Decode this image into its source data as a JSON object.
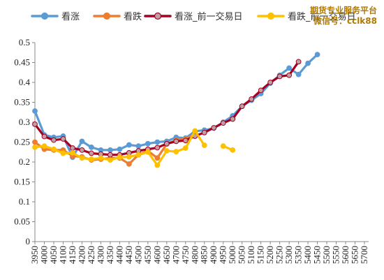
{
  "watermark": {
    "line1": "期货专业服务平台",
    "line2": "微信号：cclk88"
  },
  "chart_data": {
    "type": "line",
    "title": "",
    "xlabel": "",
    "ylabel": "",
    "ylim": [
      0,
      0.5
    ],
    "yticks": [
      "0",
      "0.05",
      "0.1",
      "0.15",
      "0.2",
      "0.25",
      "0.3",
      "0.35",
      "0.4",
      "0.45",
      "0.5"
    ],
    "grid": false,
    "legend_position": "top",
    "x": [
      3950,
      4000,
      4050,
      4100,
      4150,
      4200,
      4250,
      4300,
      4350,
      4400,
      4450,
      4500,
      4550,
      4600,
      4650,
      4700,
      4750,
      4800,
      4850,
      4900,
      4950,
      5000,
      5050,
      5100,
      5150,
      5200,
      5250,
      5300,
      5350,
      5400,
      5450,
      5500,
      5550,
      5600,
      5650,
      5700
    ],
    "series": [
      {
        "name": "看涨",
        "color": "#5b9bd5",
        "marker": "circle",
        "values": [
          0.328,
          0.268,
          0.262,
          0.265,
          0.212,
          0.252,
          0.237,
          0.23,
          0.23,
          0.232,
          0.243,
          0.24,
          0.246,
          0.25,
          0.252,
          0.262,
          0.26,
          0.277,
          0.28,
          0.285,
          0.3,
          0.316,
          0.34,
          0.355,
          0.372,
          0.398,
          0.418,
          0.436,
          0.42,
          0.448,
          0.47,
          null,
          null,
          null,
          null,
          null
        ]
      },
      {
        "name": "看跌",
        "color": "#ed7d31",
        "marker": "circle",
        "values": [
          0.25,
          0.232,
          0.23,
          0.23,
          0.215,
          0.213,
          0.205,
          0.207,
          0.21,
          0.21,
          0.195,
          0.218,
          0.228,
          0.21,
          0.245,
          0.255,
          0.258,
          0.27,
          null,
          null,
          null,
          null,
          null,
          null,
          null,
          null,
          null,
          null,
          null,
          null,
          null,
          null,
          null,
          null,
          null,
          null
        ]
      },
      {
        "name": "看涨_前一交易日",
        "color": "#a50021",
        "marker": "circle-gray",
        "values": [
          0.295,
          0.264,
          0.255,
          0.258,
          0.235,
          0.23,
          0.222,
          0.22,
          0.218,
          0.218,
          0.223,
          0.228,
          0.232,
          0.236,
          0.246,
          0.252,
          0.254,
          0.265,
          0.274,
          0.286,
          0.298,
          0.308,
          0.34,
          0.358,
          0.38,
          0.4,
          0.415,
          0.418,
          0.452,
          null,
          null,
          null,
          null,
          null,
          null,
          null
        ]
      },
      {
        "name": "看跌_前一交易日",
        "color": "#ffc000",
        "marker": "circle",
        "values": [
          0.237,
          0.24,
          0.232,
          0.222,
          0.223,
          0.21,
          0.207,
          0.21,
          0.205,
          0.212,
          0.213,
          0.218,
          0.225,
          0.192,
          0.228,
          0.226,
          0.235,
          0.278,
          0.242,
          null,
          0.24,
          0.23,
          null,
          null,
          null,
          null,
          null,
          null,
          null,
          null,
          null,
          null,
          null,
          null,
          null,
          null
        ]
      }
    ]
  }
}
